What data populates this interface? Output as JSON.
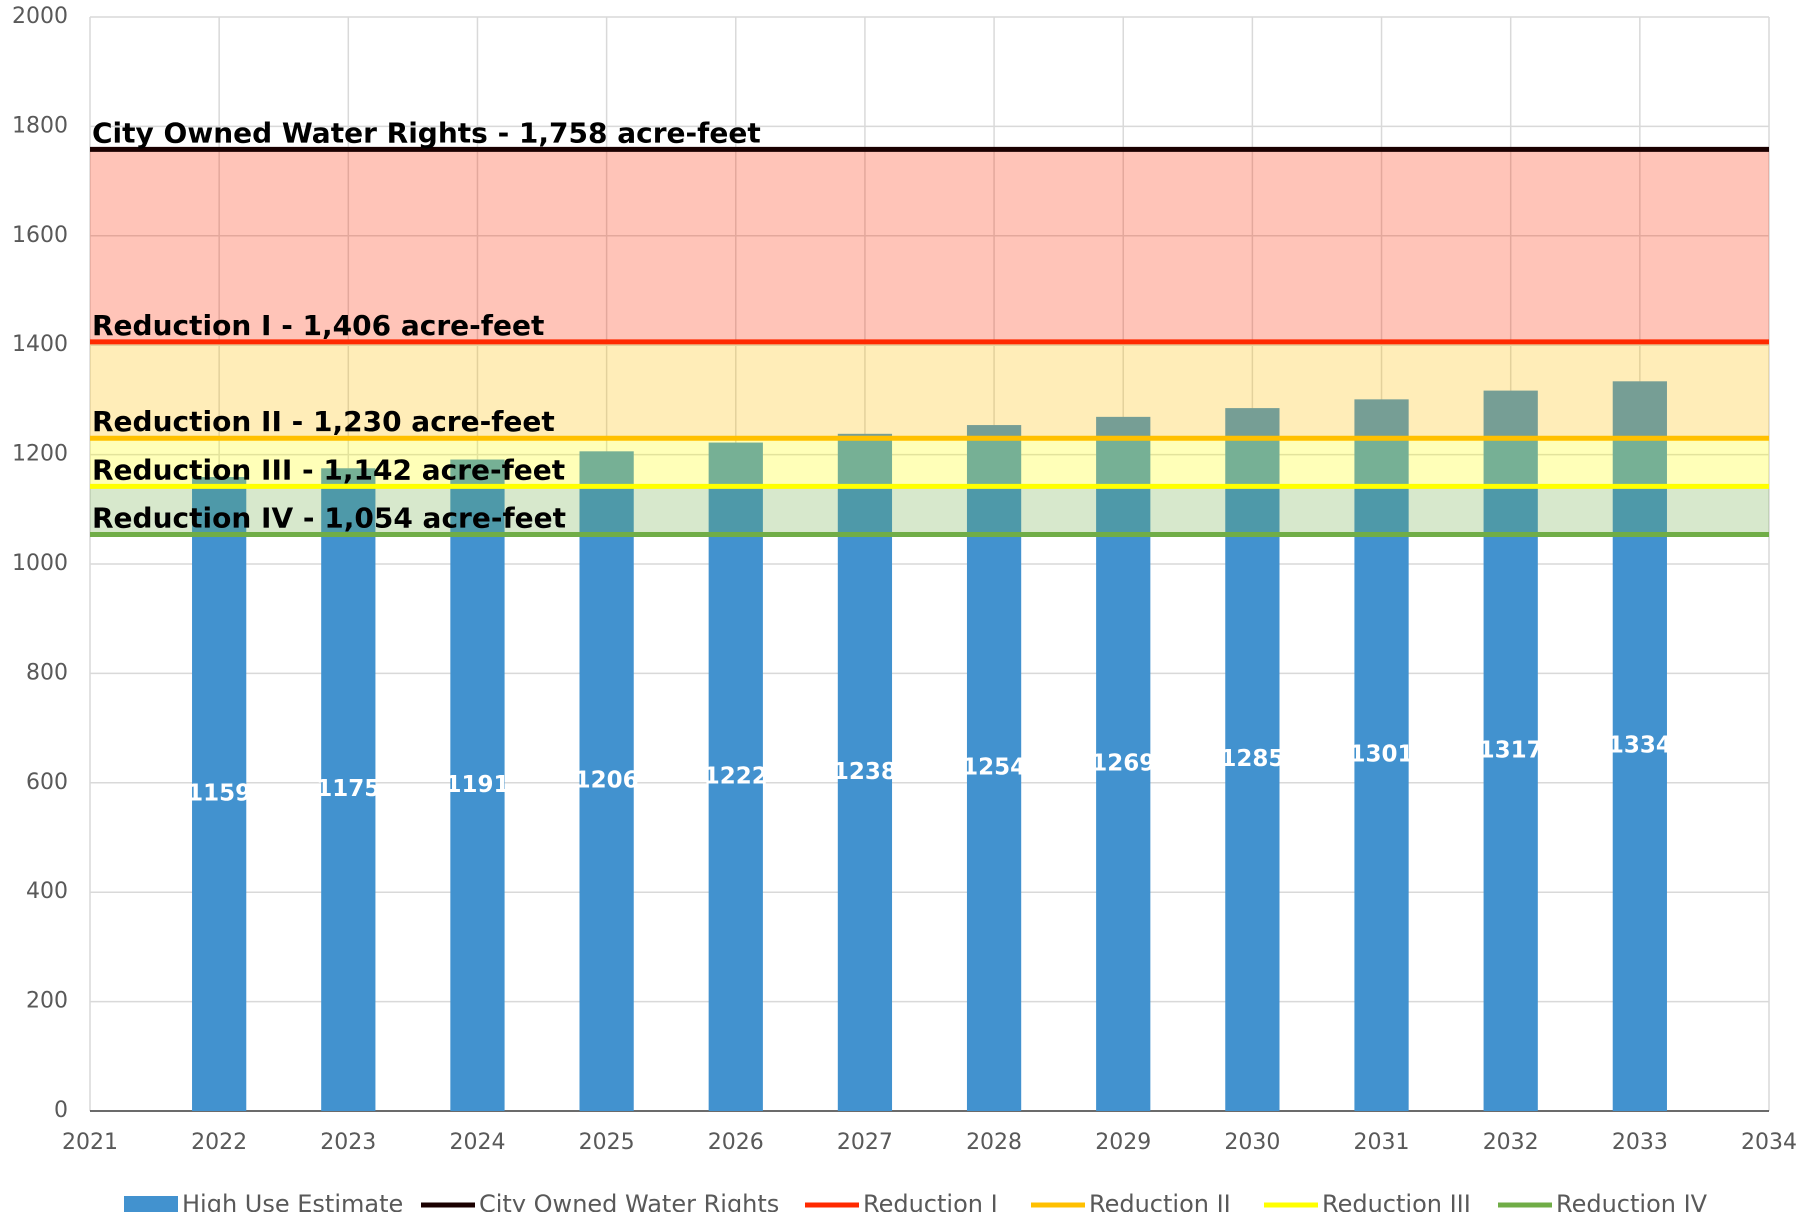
{
  "chart_data": {
    "type": "bar",
    "x": [
      2022,
      2023,
      2024,
      2025,
      2026,
      2027,
      2028,
      2029,
      2030,
      2031,
      2032,
      2033
    ],
    "series": [
      {
        "name": "High Use Estimate",
        "color": "#4292cf",
        "values": [
          1159,
          1175,
          1191,
          1206,
          1222,
          1238,
          1254,
          1269,
          1285,
          1301,
          1317,
          1334
        ]
      }
    ],
    "lines": [
      {
        "name": "City Owned Water Rights",
        "value": 1758,
        "color": "#1a0000",
        "label": "City Owned Water Rights - 1,758 acre-feet"
      },
      {
        "name": "Reduction I",
        "value": 1406,
        "color": "#ff2a00",
        "label": "Reduction I - 1,406 acre-feet"
      },
      {
        "name": "Reduction II",
        "value": 1230,
        "color": "#ffc000",
        "label": "Reduction II - 1,230 acre-feet"
      },
      {
        "name": "Reduction III",
        "value": 1142,
        "color": "#ffff00",
        "label": "Reduction III - 1,142 acre-feet"
      },
      {
        "name": "Reduction IV",
        "value": 1054,
        "color": "#70ad47",
        "label": "Reduction IV - 1,054 acre-feet"
      }
    ],
    "xlim": [
      2021,
      2034
    ],
    "xticks": [
      2021,
      2022,
      2023,
      2024,
      2025,
      2026,
      2027,
      2028,
      2029,
      2030,
      2031,
      2032,
      2033,
      2034
    ],
    "ylim": [
      0,
      2000
    ],
    "yticks": [
      0,
      200,
      400,
      600,
      800,
      1000,
      1200,
      1400,
      1600,
      1800,
      2000
    ],
    "grid": true,
    "legend": "bottom"
  }
}
